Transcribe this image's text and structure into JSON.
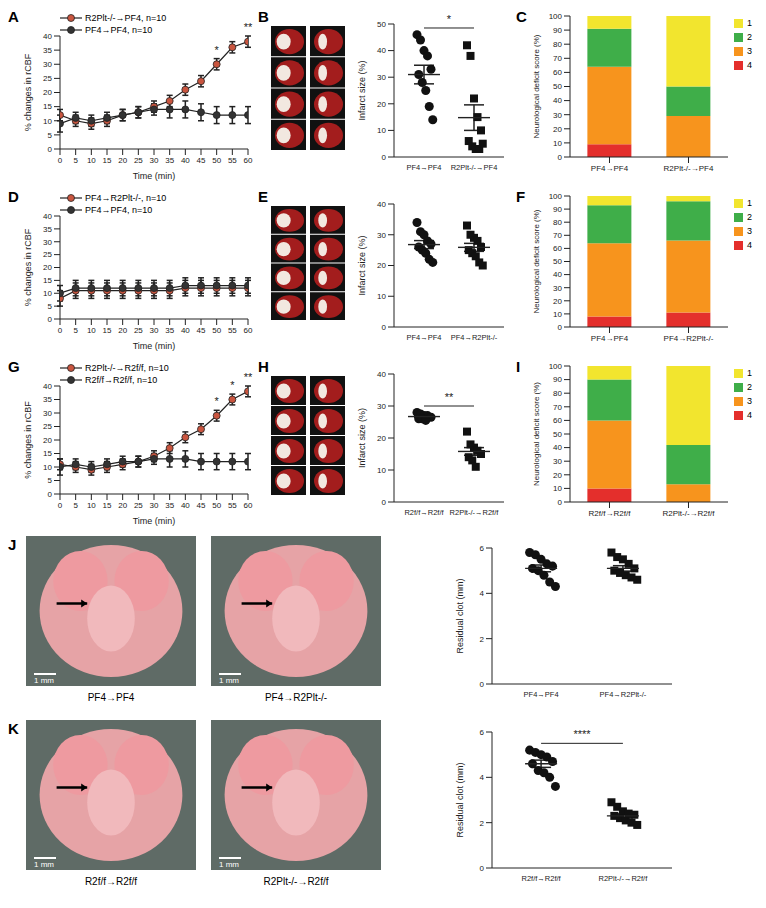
{
  "chart_data": [
    {
      "panel": "A",
      "type": "line",
      "x": [
        0,
        5,
        10,
        15,
        20,
        25,
        30,
        35,
        40,
        45,
        50,
        55,
        60
      ],
      "xlim": [
        0,
        60
      ],
      "xticks": [
        0,
        5,
        10,
        15,
        20,
        25,
        30,
        35,
        40,
        45,
        50,
        55,
        60
      ],
      "ylim": [
        0,
        40
      ],
      "yticks": [
        0,
        5,
        10,
        15,
        20,
        25,
        30,
        35,
        40
      ],
      "x_label": "Time (min)",
      "y_label": "% changes in rCBF",
      "series": [
        {
          "name": "R2Plt-/-→PF4, n=10",
          "color": "#c9553f",
          "marker": "circle",
          "values": [
            12,
            10,
            9,
            10,
            12,
            13,
            15,
            17,
            21,
            24,
            30,
            36,
            38
          ],
          "errors": [
            2,
            2,
            2,
            2,
            2,
            2,
            2,
            2,
            2,
            2,
            2,
            2,
            2
          ]
        },
        {
          "name": "PF4→PF4, n=10",
          "color": "#333333",
          "marker": "circle",
          "values": [
            9,
            11,
            10,
            11,
            12,
            13,
            14,
            14,
            14,
            13,
            12,
            12,
            12
          ],
          "errors": [
            3,
            2,
            2,
            2,
            2,
            2,
            2,
            3,
            3,
            3,
            3,
            3,
            3
          ]
        }
      ],
      "annotations": [
        {
          "x": 50,
          "text": "*"
        },
        {
          "x": 60,
          "text": "**"
        }
      ]
    },
    {
      "panel": "B",
      "type": "scatter",
      "y_label": "Infarct size (%)",
      "ylim": [
        0,
        50
      ],
      "yticks": [
        0,
        10,
        20,
        30,
        40,
        50
      ],
      "groups": [
        {
          "name": "PF4→PF4",
          "marker": "circle",
          "values": [
            46,
            44,
            40,
            38,
            33,
            31,
            28,
            25,
            19,
            14
          ],
          "mean": 31,
          "sem": 3.5
        },
        {
          "name": "R2Plt-/-→PF4",
          "marker": "square",
          "values": [
            42,
            38,
            22,
            15,
            10,
            6,
            4,
            3,
            3,
            5
          ],
          "mean": 14.8,
          "sem": 4.8
        }
      ],
      "annotations": [
        {
          "text": "*"
        }
      ]
    },
    {
      "panel": "C",
      "type": "bar",
      "stacked": true,
      "categories": [
        "PF4→PF4",
        "R2Plt-/-→PF4"
      ],
      "ylim": [
        0,
        100
      ],
      "yticks": [
        0,
        10,
        20,
        30,
        40,
        50,
        60,
        70,
        80,
        90,
        100
      ],
      "y_label": "Neurological deficit score (%)",
      "series": [
        {
          "name": "1",
          "color": "#f2e52e",
          "values": [
            9,
            50
          ]
        },
        {
          "name": "2",
          "color": "#3fae49",
          "values": [
            27,
            21
          ]
        },
        {
          "name": "3",
          "color": "#f7941d",
          "values": [
            55,
            29
          ]
        },
        {
          "name": "4",
          "color": "#e42f2c",
          "values": [
            9,
            0
          ]
        }
      ]
    },
    {
      "panel": "D",
      "type": "line",
      "x": [
        0,
        5,
        10,
        15,
        20,
        25,
        30,
        35,
        40,
        45,
        50,
        55,
        60
      ],
      "xlim": [
        0,
        60
      ],
      "xticks": [
        0,
        5,
        10,
        15,
        20,
        25,
        30,
        35,
        40,
        45,
        50,
        55,
        60
      ],
      "ylim": [
        0,
        40
      ],
      "yticks": [
        0,
        5,
        10,
        15,
        20,
        25,
        30,
        35,
        40
      ],
      "x_label": "Time (min)",
      "y_label": "% changes in rCBF",
      "series": [
        {
          "name": "PF4→R2Plt-/-, n=10",
          "color": "#c9553f",
          "marker": "circle",
          "values": [
            8,
            11,
            11,
            11,
            11,
            11,
            11,
            11,
            12,
            12,
            12,
            12,
            12
          ],
          "errors": [
            3,
            3,
            3,
            3,
            3,
            3,
            3,
            3,
            3,
            3,
            3,
            3,
            3
          ]
        },
        {
          "name": "PF4→PF4, n=10",
          "color": "#333333",
          "marker": "circle",
          "values": [
            10,
            12,
            12,
            12,
            12,
            12,
            12,
            12,
            13,
            13,
            13,
            13,
            13
          ],
          "errors": [
            3,
            3,
            3,
            3,
            3,
            3,
            3,
            3,
            3,
            3,
            3,
            3,
            3
          ]
        }
      ],
      "annotations": []
    },
    {
      "panel": "E",
      "type": "scatter",
      "y_label": "Infarct size (%)",
      "ylim": [
        0,
        40
      ],
      "yticks": [
        0,
        10,
        20,
        30,
        40
      ],
      "groups": [
        {
          "name": "PF4→PF4",
          "marker": "circle",
          "values": [
            34,
            31,
            30,
            28,
            27,
            26,
            25,
            24,
            22,
            21
          ],
          "mean": 26.8,
          "sem": 1.3
        },
        {
          "name": "PF4→R2Plt-/-",
          "marker": "square",
          "values": [
            33,
            30,
            29,
            28,
            26,
            25,
            24,
            23,
            21,
            20
          ],
          "mean": 25.9,
          "sem": 1.3
        }
      ],
      "annotations": []
    },
    {
      "panel": "F",
      "type": "bar",
      "stacked": true,
      "categories": [
        "PF4→PF4",
        "PF4→R2Plt-/-"
      ],
      "ylim": [
        0,
        100
      ],
      "yticks": [
        0,
        10,
        20,
        30,
        40,
        50,
        60,
        70,
        80,
        90,
        100
      ],
      "y_label": "Neurological deficit score (%)",
      "series": [
        {
          "name": "1",
          "color": "#f2e52e",
          "values": [
            7,
            4
          ]
        },
        {
          "name": "2",
          "color": "#3fae49",
          "values": [
            29,
            30
          ]
        },
        {
          "name": "3",
          "color": "#f7941d",
          "values": [
            56,
            55
          ]
        },
        {
          "name": "4",
          "color": "#e42f2c",
          "values": [
            8,
            11
          ]
        }
      ]
    },
    {
      "panel": "G",
      "type": "line",
      "x": [
        0,
        5,
        10,
        15,
        20,
        25,
        30,
        35,
        40,
        45,
        50,
        55,
        60
      ],
      "xlim": [
        0,
        60
      ],
      "xticks": [
        0,
        5,
        10,
        15,
        20,
        25,
        30,
        35,
        40,
        45,
        50,
        55,
        60
      ],
      "ylim": [
        0,
        40
      ],
      "yticks": [
        0,
        5,
        10,
        15,
        20,
        25,
        30,
        35,
        40
      ],
      "x_label": "Time (min)",
      "y_label": "% changes in rCBF",
      "series": [
        {
          "name": "R2Plt-/-→R2f/f, n=10",
          "color": "#c9553f",
          "marker": "circle",
          "values": [
            11,
            10,
            9,
            10,
            11,
            12,
            14,
            17,
            21,
            24,
            29,
            35,
            38
          ],
          "errors": [
            2,
            2,
            2,
            2,
            2,
            2,
            2,
            2,
            2,
            2,
            2,
            2,
            2
          ]
        },
        {
          "name": "R2f/f→R2f/f, n=10",
          "color": "#333333",
          "marker": "circle",
          "values": [
            10,
            11,
            10,
            11,
            12,
            12,
            13,
            13,
            13,
            12,
            12,
            12,
            12
          ],
          "errors": [
            3,
            2,
            2,
            2,
            2,
            2,
            2,
            3,
            3,
            3,
            3,
            3,
            3
          ]
        }
      ],
      "annotations": [
        {
          "x": 50,
          "text": "*"
        },
        {
          "x": 55,
          "text": "*"
        },
        {
          "x": 60,
          "text": "**"
        }
      ]
    },
    {
      "panel": "H",
      "type": "scatter",
      "y_label": "Infarct size (%)",
      "ylim": [
        0,
        40
      ],
      "yticks": [
        0,
        10,
        20,
        30,
        40
      ],
      "groups": [
        {
          "name": "R2f/f→R2f/f",
          "marker": "circle",
          "values": [
            28,
            27.5,
            27,
            27,
            26.5,
            26,
            26,
            25.5
          ],
          "mean": 26.7,
          "sem": 0.3
        },
        {
          "name": "R2Plt-/-→R2f/f",
          "marker": "square",
          "values": [
            22,
            18,
            17,
            16,
            15,
            14,
            13,
            11
          ],
          "mean": 15.8,
          "sem": 1.2
        }
      ],
      "annotations": [
        {
          "text": "**"
        }
      ]
    },
    {
      "panel": "I",
      "type": "bar",
      "stacked": true,
      "categories": [
        "R2f/f→R2f/f",
        "R2Plt-/-→R2f/f"
      ],
      "ylim": [
        0,
        100
      ],
      "yticks": [
        0,
        10,
        20,
        30,
        40,
        50,
        60,
        70,
        80,
        90,
        100
      ],
      "y_label": "Neurological deficit score (%)",
      "series": [
        {
          "name": "1",
          "color": "#f2e52e",
          "values": [
            10,
            58
          ]
        },
        {
          "name": "2",
          "color": "#3fae49",
          "values": [
            30,
            29
          ]
        },
        {
          "name": "3",
          "color": "#f7941d",
          "values": [
            50,
            13
          ]
        },
        {
          "name": "4",
          "color": "#e42f2c",
          "values": [
            10,
            0
          ]
        }
      ]
    },
    {
      "type": "scatter",
      "y_label": "Residual clot (mm)",
      "ylim": [
        0,
        6
      ],
      "yticks": [
        0,
        2,
        4,
        6
      ],
      "groups": [
        {
          "name": "PF4→PF4",
          "marker": "circle",
          "values": [
            5.8,
            5.7,
            5.5,
            5.3,
            5.2,
            5.1,
            5.0,
            4.8,
            4.5,
            4.3
          ],
          "mean": 5.1,
          "sem": 0.15
        },
        {
          "name": "PF4→R2Plt-/-",
          "marker": "square",
          "values": [
            5.8,
            5.6,
            5.5,
            5.3,
            5.1,
            5.0,
            4.9,
            4.8,
            4.7,
            4.6
          ],
          "mean": 5.1,
          "sem": 0.12
        }
      ],
      "annotations": []
    },
    {
      "type": "scatter",
      "y_label": "Residual clot (mm)",
      "ylim": [
        0,
        6
      ],
      "yticks": [
        0,
        2,
        4,
        6
      ],
      "groups": [
        {
          "name": "R2f/f→R2f/f",
          "marker": "circle",
          "values": [
            5.2,
            5.1,
            5.0,
            4.9,
            4.7,
            4.6,
            4.3,
            4.2,
            4.0,
            3.6
          ],
          "mean": 4.6,
          "sem": 0.16
        },
        {
          "name": "R2Plt-/-→R2f/f",
          "marker": "square",
          "values": [
            2.9,
            2.7,
            2.5,
            2.4,
            2.35,
            2.3,
            2.2,
            2.1,
            2.0,
            1.9
          ],
          "mean": 2.3,
          "sem": 0.09
        }
      ],
      "annotations": [
        {
          "text": "****"
        }
      ]
    }
  ],
  "images": [
    {
      "panel": "J",
      "captions": [
        "PF4→PF4",
        "PF4→R2Plt-/-"
      ],
      "scale_label": "1 mm"
    },
    {
      "panel": "K",
      "captions": [
        "R2f/f→R2f/f",
        "R2Plt-/-→R2f/f"
      ],
      "scale_label": "1 mm"
    }
  ]
}
